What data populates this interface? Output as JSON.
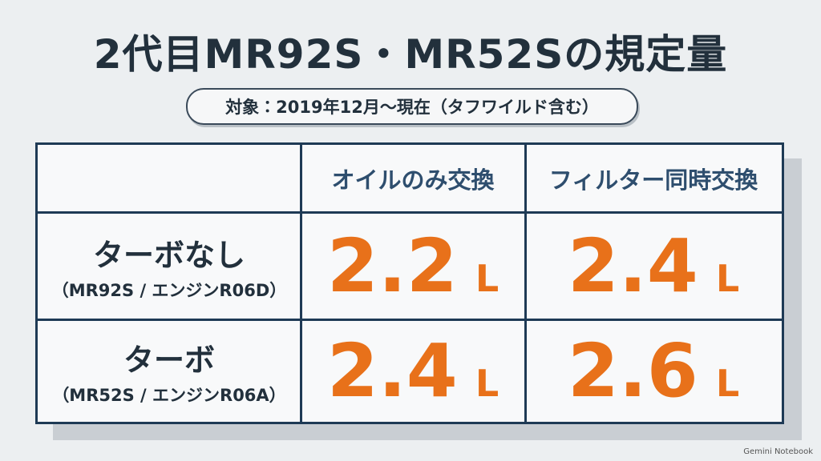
{
  "title": "2代目MR92S・MR52Sの規定量",
  "subtitle": "対象：2019年12月〜現在（タフワイルド含む）",
  "table": {
    "columns": [
      "オイルのみ交換",
      "フィルター同時交換"
    ],
    "rows": [
      {
        "label": "ターボなし",
        "sublabel": "（MR92S / エンジンR06D）",
        "cells": [
          {
            "value": 2.2,
            "unit": "L"
          },
          {
            "value": 2.4,
            "unit": "L"
          }
        ]
      },
      {
        "label": "ターボ",
        "sublabel": "（MR52S / エンジンR06A）",
        "cells": [
          {
            "value": 2.4,
            "unit": "L"
          },
          {
            "value": 2.6,
            "unit": "L"
          }
        ]
      }
    ]
  },
  "watermark": "Gemini Notebook"
}
